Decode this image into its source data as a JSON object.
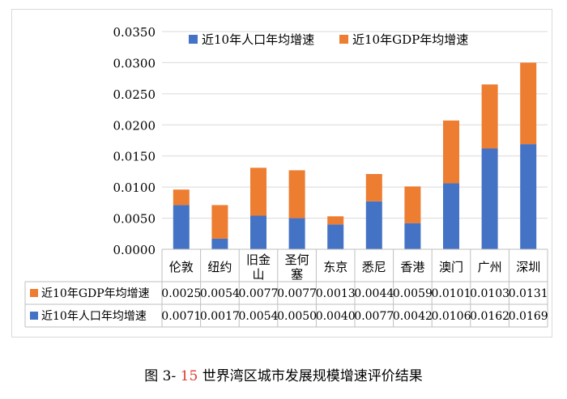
{
  "chart_data": {
    "type": "bar",
    "stacked": true,
    "title": "",
    "xlabel": "",
    "ylabel": "",
    "ylim": [
      0,
      0.035
    ],
    "y_ticks": [
      "0.0000",
      "0.0050",
      "0.0100",
      "0.0150",
      "0.0200",
      "0.0250",
      "0.0300",
      "0.0350"
    ],
    "grid": true,
    "legend_position": "top",
    "categories": [
      "伦敦",
      "纽约",
      "旧金山",
      "圣何塞",
      "东京",
      "悉尼",
      "香港",
      "澳门",
      "广州",
      "深圳"
    ],
    "series": [
      {
        "name": "近10年人口年均增速",
        "color": "#4472c4",
        "values": [
          0.0071,
          0.0017,
          0.0054,
          0.005,
          0.004,
          0.0077,
          0.0042,
          0.0106,
          0.0162,
          0.0169
        ],
        "labels": [
          "0.0071",
          "0.0017",
          "0.0054",
          "0.0050",
          "0.0040",
          "0.0077",
          "0.0042",
          "0.0106",
          "0.0162",
          "0.0169"
        ]
      },
      {
        "name": "近10年GDP年均增速",
        "color": "#ed7d31",
        "values": [
          0.0025,
          0.0054,
          0.0077,
          0.0077,
          0.0013,
          0.0044,
          0.0059,
          0.0101,
          0.0103,
          0.0131
        ],
        "labels": [
          "0.0025",
          "0.0054",
          "0.0077",
          "0.0077",
          "0.0013",
          "0.0044",
          "0.0059",
          "0.0101",
          "0.0103",
          "0.0131"
        ]
      }
    ],
    "table_order": [
      1,
      0
    ]
  },
  "caption": {
    "prefix": "图 3- ",
    "number": "15",
    "text": " 世界湾区城市发展规模增速评价结果"
  }
}
